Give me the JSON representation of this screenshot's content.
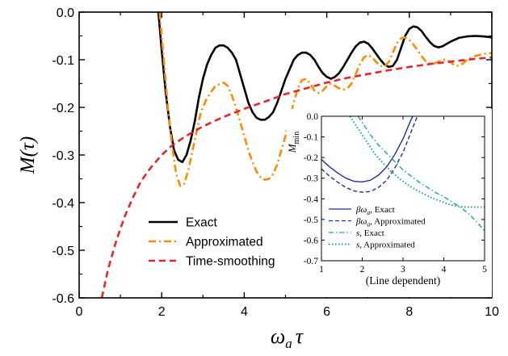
{
  "chart_data": [
    {
      "panel": "main",
      "type": "line",
      "xlabel": {
        "main": "ω",
        "sub": "a",
        "tail": "τ"
      },
      "ylabel": "M(τ)",
      "xlim": [
        0,
        10
      ],
      "ylim": [
        -0.6,
        0.0
      ],
      "x_ticks": [
        0,
        2,
        4,
        6,
        8,
        10
      ],
      "y_ticks": [
        0.0,
        -0.1,
        -0.2,
        -0.3,
        -0.4,
        -0.5,
        -0.6
      ],
      "x_tick_labels": [
        "0",
        "2",
        "4",
        "6",
        "8",
        "10"
      ],
      "y_tick_labels": [
        "0.0",
        "-0.1",
        "-0.2",
        "-0.3",
        "-0.4",
        "-0.5",
        "-0.6"
      ],
      "grid": false,
      "legend_position": "bottom-left",
      "series": [
        {
          "name": "Exact",
          "color": "#000000",
          "style": "solid",
          "points": [
            [
              1.92,
              0.0
            ],
            [
              2.0,
              -0.08
            ],
            [
              2.1,
              -0.17
            ],
            [
              2.2,
              -0.24
            ],
            [
              2.3,
              -0.29
            ],
            [
              2.4,
              -0.31
            ],
            [
              2.5,
              -0.315
            ],
            [
              2.6,
              -0.3
            ],
            [
              2.7,
              -0.27
            ],
            [
              2.8,
              -0.23
            ],
            [
              2.9,
              -0.18
            ],
            [
              3.0,
              -0.14
            ],
            [
              3.1,
              -0.11
            ],
            [
              3.2,
              -0.09
            ],
            [
              3.3,
              -0.075
            ],
            [
              3.4,
              -0.07
            ],
            [
              3.5,
              -0.07
            ],
            [
              3.6,
              -0.075
            ],
            [
              3.7,
              -0.085
            ],
            [
              3.8,
              -0.1
            ],
            [
              3.9,
              -0.13
            ],
            [
              4.0,
              -0.16
            ],
            [
              4.1,
              -0.19
            ],
            [
              4.2,
              -0.21
            ],
            [
              4.3,
              -0.222
            ],
            [
              4.4,
              -0.226
            ],
            [
              4.5,
              -0.226
            ],
            [
              4.6,
              -0.22
            ],
            [
              4.7,
              -0.21
            ],
            [
              4.8,
              -0.19
            ],
            [
              4.9,
              -0.165
            ],
            [
              5.0,
              -0.14
            ],
            [
              5.1,
              -0.12
            ],
            [
              5.2,
              -0.1
            ],
            [
              5.3,
              -0.09
            ],
            [
              5.4,
              -0.085
            ],
            [
              5.5,
              -0.085
            ],
            [
              5.6,
              -0.09
            ],
            [
              5.7,
              -0.1
            ],
            [
              5.8,
              -0.115
            ],
            [
              5.9,
              -0.128
            ],
            [
              6.0,
              -0.136
            ],
            [
              6.1,
              -0.14
            ],
            [
              6.2,
              -0.136
            ],
            [
              6.3,
              -0.128
            ],
            [
              6.4,
              -0.115
            ],
            [
              6.5,
              -0.1
            ],
            [
              6.6,
              -0.085
            ],
            [
              6.7,
              -0.072
            ],
            [
              6.8,
              -0.064
            ],
            [
              6.9,
              -0.062
            ],
            [
              7.0,
              -0.066
            ],
            [
              7.1,
              -0.076
            ],
            [
              7.2,
              -0.088
            ],
            [
              7.3,
              -0.1
            ],
            [
              7.4,
              -0.11
            ],
            [
              7.5,
              -0.115
            ],
            [
              7.6,
              -0.113
            ],
            [
              7.7,
              -0.1
            ],
            [
              7.8,
              -0.075
            ],
            [
              7.9,
              -0.05
            ],
            [
              8.0,
              -0.035
            ],
            [
              8.1,
              -0.03
            ],
            [
              8.2,
              -0.032
            ],
            [
              8.3,
              -0.04
            ],
            [
              8.4,
              -0.052
            ],
            [
              8.5,
              -0.063
            ],
            [
              8.6,
              -0.071
            ],
            [
              8.7,
              -0.074
            ],
            [
              8.8,
              -0.072
            ],
            [
              8.9,
              -0.067
            ],
            [
              9.0,
              -0.062
            ],
            [
              9.2,
              -0.054
            ],
            [
              9.4,
              -0.051
            ],
            [
              9.6,
              -0.05
            ],
            [
              9.8,
              -0.051
            ],
            [
              10.0,
              -0.053
            ]
          ]
        },
        {
          "name": "Approximated",
          "color": "#ff8c00",
          "style": "dashdot",
          "points": [
            [
              1.95,
              0.0
            ],
            [
              2.05,
              -0.1
            ],
            [
              2.15,
              -0.2
            ],
            [
              2.25,
              -0.28
            ],
            [
              2.35,
              -0.34
            ],
            [
              2.45,
              -0.365
            ],
            [
              2.55,
              -0.36
            ],
            [
              2.65,
              -0.33
            ],
            [
              2.75,
              -0.29
            ],
            [
              2.85,
              -0.25
            ],
            [
              2.95,
              -0.21
            ],
            [
              3.1,
              -0.18
            ],
            [
              3.3,
              -0.155
            ],
            [
              3.5,
              -0.148
            ],
            [
              3.6,
              -0.155
            ],
            [
              3.7,
              -0.175
            ],
            [
              3.8,
              -0.2
            ],
            [
              3.9,
              -0.23
            ],
            [
              4.0,
              -0.26
            ],
            [
              4.1,
              -0.29
            ],
            [
              4.2,
              -0.315
            ],
            [
              4.3,
              -0.335
            ],
            [
              4.4,
              -0.347
            ],
            [
              4.5,
              -0.352
            ],
            [
              4.6,
              -0.35
            ],
            [
              4.7,
              -0.34
            ],
            [
              4.8,
              -0.32
            ],
            [
              4.9,
              -0.29
            ],
            [
              5.0,
              -0.26
            ],
            [
              5.1,
              -0.225
            ],
            [
              5.2,
              -0.19
            ],
            [
              5.3,
              -0.16
            ],
            [
              5.4,
              -0.143
            ],
            [
              5.5,
              -0.14
            ],
            [
              5.6,
              -0.15
            ],
            [
              5.7,
              -0.165
            ],
            [
              5.8,
              -0.17
            ],
            [
              5.9,
              -0.165
            ],
            [
              6.0,
              -0.155
            ],
            [
              6.1,
              -0.15
            ],
            [
              6.2,
              -0.155
            ],
            [
              6.3,
              -0.16
            ],
            [
              6.4,
              -0.163
            ],
            [
              6.5,
              -0.16
            ],
            [
              6.6,
              -0.15
            ],
            [
              6.7,
              -0.13
            ],
            [
              6.8,
              -0.11
            ],
            [
              6.9,
              -0.095
            ],
            [
              7.0,
              -0.09
            ],
            [
              7.1,
              -0.095
            ],
            [
              7.2,
              -0.105
            ],
            [
              7.3,
              -0.113
            ],
            [
              7.4,
              -0.114
            ],
            [
              7.5,
              -0.105
            ],
            [
              7.6,
              -0.085
            ],
            [
              7.7,
              -0.065
            ],
            [
              7.8,
              -0.055
            ],
            [
              7.9,
              -0.053
            ],
            [
              8.0,
              -0.058
            ],
            [
              8.1,
              -0.068
            ],
            [
              8.2,
              -0.08
            ],
            [
              8.3,
              -0.093
            ],
            [
              8.4,
              -0.103
            ],
            [
              8.5,
              -0.108
            ],
            [
              8.6,
              -0.108
            ],
            [
              8.7,
              -0.104
            ],
            [
              8.8,
              -0.1
            ],
            [
              8.9,
              -0.1
            ],
            [
              9.0,
              -0.105
            ],
            [
              9.1,
              -0.112
            ],
            [
              9.2,
              -0.113
            ],
            [
              9.3,
              -0.108
            ],
            [
              9.4,
              -0.1
            ],
            [
              9.6,
              -0.092
            ],
            [
              9.8,
              -0.088
            ],
            [
              10.0,
              -0.086
            ]
          ]
        },
        {
          "name": "Time-smoothing",
          "color": "#e8262a",
          "style": "dashed",
          "points": [
            [
              0.55,
              -0.6
            ],
            [
              0.7,
              -0.54
            ],
            [
              0.9,
              -0.48
            ],
            [
              1.1,
              -0.43
            ],
            [
              1.3,
              -0.39
            ],
            [
              1.5,
              -0.355
            ],
            [
              1.75,
              -0.325
            ],
            [
              2.0,
              -0.3
            ],
            [
              2.25,
              -0.28
            ],
            [
              2.5,
              -0.265
            ],
            [
              2.75,
              -0.252
            ],
            [
              3.0,
              -0.24
            ],
            [
              3.5,
              -0.22
            ],
            [
              4.0,
              -0.203
            ],
            [
              4.5,
              -0.188
            ],
            [
              5.0,
              -0.172
            ],
            [
              5.5,
              -0.16
            ],
            [
              6.0,
              -0.148
            ],
            [
              6.5,
              -0.138
            ],
            [
              7.0,
              -0.13
            ],
            [
              7.5,
              -0.122
            ],
            [
              8.0,
              -0.115
            ],
            [
              8.5,
              -0.109
            ],
            [
              9.0,
              -0.104
            ],
            [
              9.5,
              -0.099
            ],
            [
              10.0,
              -0.095
            ]
          ]
        }
      ]
    },
    {
      "panel": "inset",
      "type": "line",
      "xlabel": "(Line dependent)",
      "ylabel": {
        "main": "M",
        "sub": "min"
      },
      "xlim": [
        1,
        5
      ],
      "ylim": [
        -0.7,
        0.0
      ],
      "x_ticks": [
        1,
        2,
        3,
        4,
        5
      ],
      "y_ticks": [
        0.0,
        -0.1,
        -0.2,
        -0.3,
        -0.4,
        -0.5,
        -0.6,
        -0.7
      ],
      "x_tick_labels": [
        "1",
        "2",
        "3",
        "4",
        "5"
      ],
      "y_tick_labels": [
        "0.0",
        "-0.1",
        "-0.2",
        "-0.3",
        "-0.4",
        "-0.5",
        "-0.6",
        "-0.7"
      ],
      "grid": false,
      "legend_position": "bottom-left",
      "series": [
        {
          "name": "βωa, Exact",
          "label": {
            "main": "βω",
            "sub": "a",
            "tail": ", Exact"
          },
          "color": "#1f2fa0",
          "style": "solid",
          "points": [
            [
              1.0,
              -0.21
            ],
            [
              1.2,
              -0.245
            ],
            [
              1.4,
              -0.275
            ],
            [
              1.6,
              -0.3
            ],
            [
              1.8,
              -0.315
            ],
            [
              2.0,
              -0.318
            ],
            [
              2.2,
              -0.31
            ],
            [
              2.4,
              -0.285
            ],
            [
              2.6,
              -0.245
            ],
            [
              2.8,
              -0.185
            ],
            [
              3.0,
              -0.11
            ],
            [
              3.2,
              -0.015
            ],
            [
              3.24,
              0.0
            ]
          ]
        },
        {
          "name": "βωa, Approximated",
          "label": {
            "main": "βω",
            "sub": "a",
            "tail": ", Approximated"
          },
          "color": "#1f2fa0",
          "style": "dashed",
          "points": [
            [
              1.0,
              -0.255
            ],
            [
              1.2,
              -0.29
            ],
            [
              1.4,
              -0.32
            ],
            [
              1.6,
              -0.345
            ],
            [
              1.8,
              -0.362
            ],
            [
              2.0,
              -0.368
            ],
            [
              2.2,
              -0.365
            ],
            [
              2.4,
              -0.345
            ],
            [
              2.6,
              -0.31
            ],
            [
              2.8,
              -0.25
            ],
            [
              3.0,
              -0.175
            ],
            [
              3.2,
              -0.075
            ],
            [
              3.35,
              0.0
            ]
          ]
        },
        {
          "name": "s, Exact",
          "label": {
            "main": "s",
            "sub": "",
            "tail": ", Exact"
          },
          "color": "#1aa0a0",
          "style": "dashdot",
          "points": [
            [
              1.9,
              0.0
            ],
            [
              2.0,
              -0.03
            ],
            [
              2.2,
              -0.09
            ],
            [
              2.4,
              -0.14
            ],
            [
              2.6,
              -0.18
            ],
            [
              2.8,
              -0.22
            ],
            [
              3.0,
              -0.26
            ],
            [
              3.2,
              -0.29
            ],
            [
              3.4,
              -0.32
            ],
            [
              3.6,
              -0.345
            ],
            [
              3.8,
              -0.37
            ],
            [
              4.0,
              -0.39
            ],
            [
              4.2,
              -0.415
            ],
            [
              4.4,
              -0.44
            ],
            [
              4.6,
              -0.47
            ],
            [
              4.8,
              -0.51
            ],
            [
              5.0,
              -0.555
            ]
          ]
        },
        {
          "name": "s, Approximated",
          "label": {
            "main": "s",
            "sub": "",
            "tail": ", Approximated"
          },
          "color": "#1aa0a0",
          "style": "dotted",
          "points": [
            [
              1.7,
              0.0
            ],
            [
              1.9,
              -0.06
            ],
            [
              2.1,
              -0.12
            ],
            [
              2.3,
              -0.18
            ],
            [
              2.5,
              -0.225
            ],
            [
              2.7,
              -0.265
            ],
            [
              2.9,
              -0.3
            ],
            [
              3.1,
              -0.33
            ],
            [
              3.3,
              -0.355
            ],
            [
              3.5,
              -0.375
            ],
            [
              3.7,
              -0.395
            ],
            [
              3.9,
              -0.41
            ],
            [
              4.1,
              -0.425
            ],
            [
              4.3,
              -0.435
            ],
            [
              4.5,
              -0.44
            ],
            [
              4.7,
              -0.44
            ],
            [
              4.9,
              -0.44
            ],
            [
              5.0,
              -0.44
            ]
          ]
        }
      ]
    }
  ]
}
